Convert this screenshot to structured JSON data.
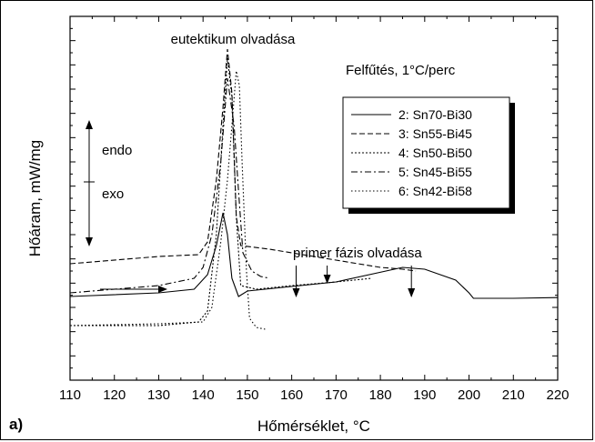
{
  "panel_label": "a)",
  "annotations": {
    "eutectic": "eutektikum olvadása",
    "heating": "Felfűtés, 1°C/perc",
    "endo": "endo",
    "exo": "exo",
    "primary": "primer fázis olvadása"
  },
  "chart_data": {
    "type": "line",
    "xlabel": "Hőmérséklet, °C",
    "ylabel": "Hőáram, mW/mg",
    "xlim": [
      110,
      220
    ],
    "x_ticks": [
      110,
      120,
      130,
      140,
      150,
      160,
      170,
      180,
      190,
      200,
      210,
      220
    ],
    "ylim": [
      0,
      1
    ],
    "y_tick_labels_shown": false,
    "legend_position": "top-right",
    "primary_melting_markers_x": [
      161,
      168,
      187
    ],
    "series": [
      {
        "name": "2: Sn70-Bi30",
        "dash": "solid",
        "points": [
          [
            110,
            0.23
          ],
          [
            130,
            0.24
          ],
          [
            138,
            0.25
          ],
          [
            141,
            0.29
          ],
          [
            143,
            0.37
          ],
          [
            144.5,
            0.46
          ],
          [
            145.5,
            0.4
          ],
          [
            146.5,
            0.28
          ],
          [
            148,
            0.23
          ],
          [
            150,
            0.245
          ],
          [
            170,
            0.27
          ],
          [
            185,
            0.31
          ],
          [
            190,
            0.305
          ],
          [
            197,
            0.275
          ],
          [
            200,
            0.24
          ],
          [
            201,
            0.225
          ],
          [
            210,
            0.225
          ],
          [
            220,
            0.227
          ]
        ]
      },
      {
        "name": "3: Sn55-Bi45",
        "dash": "dashed",
        "points": [
          [
            110,
            0.32
          ],
          [
            130,
            0.34
          ],
          [
            139,
            0.345
          ],
          [
            141,
            0.38
          ],
          [
            143,
            0.55
          ],
          [
            144.5,
            0.75
          ],
          [
            145.5,
            0.91
          ],
          [
            146.5,
            0.79
          ],
          [
            147.5,
            0.45
          ],
          [
            148.5,
            0.37
          ],
          [
            155,
            0.36
          ],
          [
            165,
            0.34
          ],
          [
            175,
            0.32
          ],
          [
            180,
            0.31
          ],
          [
            185,
            0.305
          ],
          [
            188,
            0.3
          ]
        ]
      },
      {
        "name": "4: Sn50-Bi50",
        "dash": "dotted",
        "points": [
          [
            110,
            0.15
          ],
          [
            130,
            0.15
          ],
          [
            139,
            0.16
          ],
          [
            141,
            0.19
          ],
          [
            143,
            0.4
          ],
          [
            144.5,
            0.7
          ],
          [
            145.5,
            0.885
          ],
          [
            146.5,
            0.78
          ],
          [
            147.5,
            0.45
          ],
          [
            148.5,
            0.26
          ],
          [
            152,
            0.25
          ],
          [
            160,
            0.26
          ],
          [
            170,
            0.27
          ],
          [
            178,
            0.28
          ]
        ]
      },
      {
        "name": "5: Sn45-Bi55",
        "dash": "dashdot",
        "points": [
          [
            110,
            0.24
          ],
          [
            130,
            0.26
          ],
          [
            138,
            0.28
          ],
          [
            140,
            0.31
          ],
          [
            142,
            0.4
          ],
          [
            144,
            0.6
          ],
          [
            145.5,
            0.83
          ],
          [
            147,
            0.7
          ],
          [
            148,
            0.52
          ],
          [
            149,
            0.35
          ],
          [
            151,
            0.3
          ],
          [
            153,
            0.285
          ],
          [
            155,
            0.28
          ]
        ]
      },
      {
        "name": "6: Sn42-Bi58",
        "dash": "densedot",
        "points": [
          [
            110,
            0.15
          ],
          [
            130,
            0.155
          ],
          [
            140,
            0.16
          ],
          [
            142,
            0.2
          ],
          [
            144,
            0.38
          ],
          [
            145.5,
            0.55
          ],
          [
            146.5,
            0.7
          ],
          [
            147.5,
            0.85
          ],
          [
            148.2,
            0.81
          ],
          [
            148.8,
            0.6
          ],
          [
            149.8,
            0.3
          ],
          [
            150.5,
            0.17
          ],
          [
            152,
            0.145
          ],
          [
            154,
            0.14
          ]
        ]
      }
    ]
  }
}
